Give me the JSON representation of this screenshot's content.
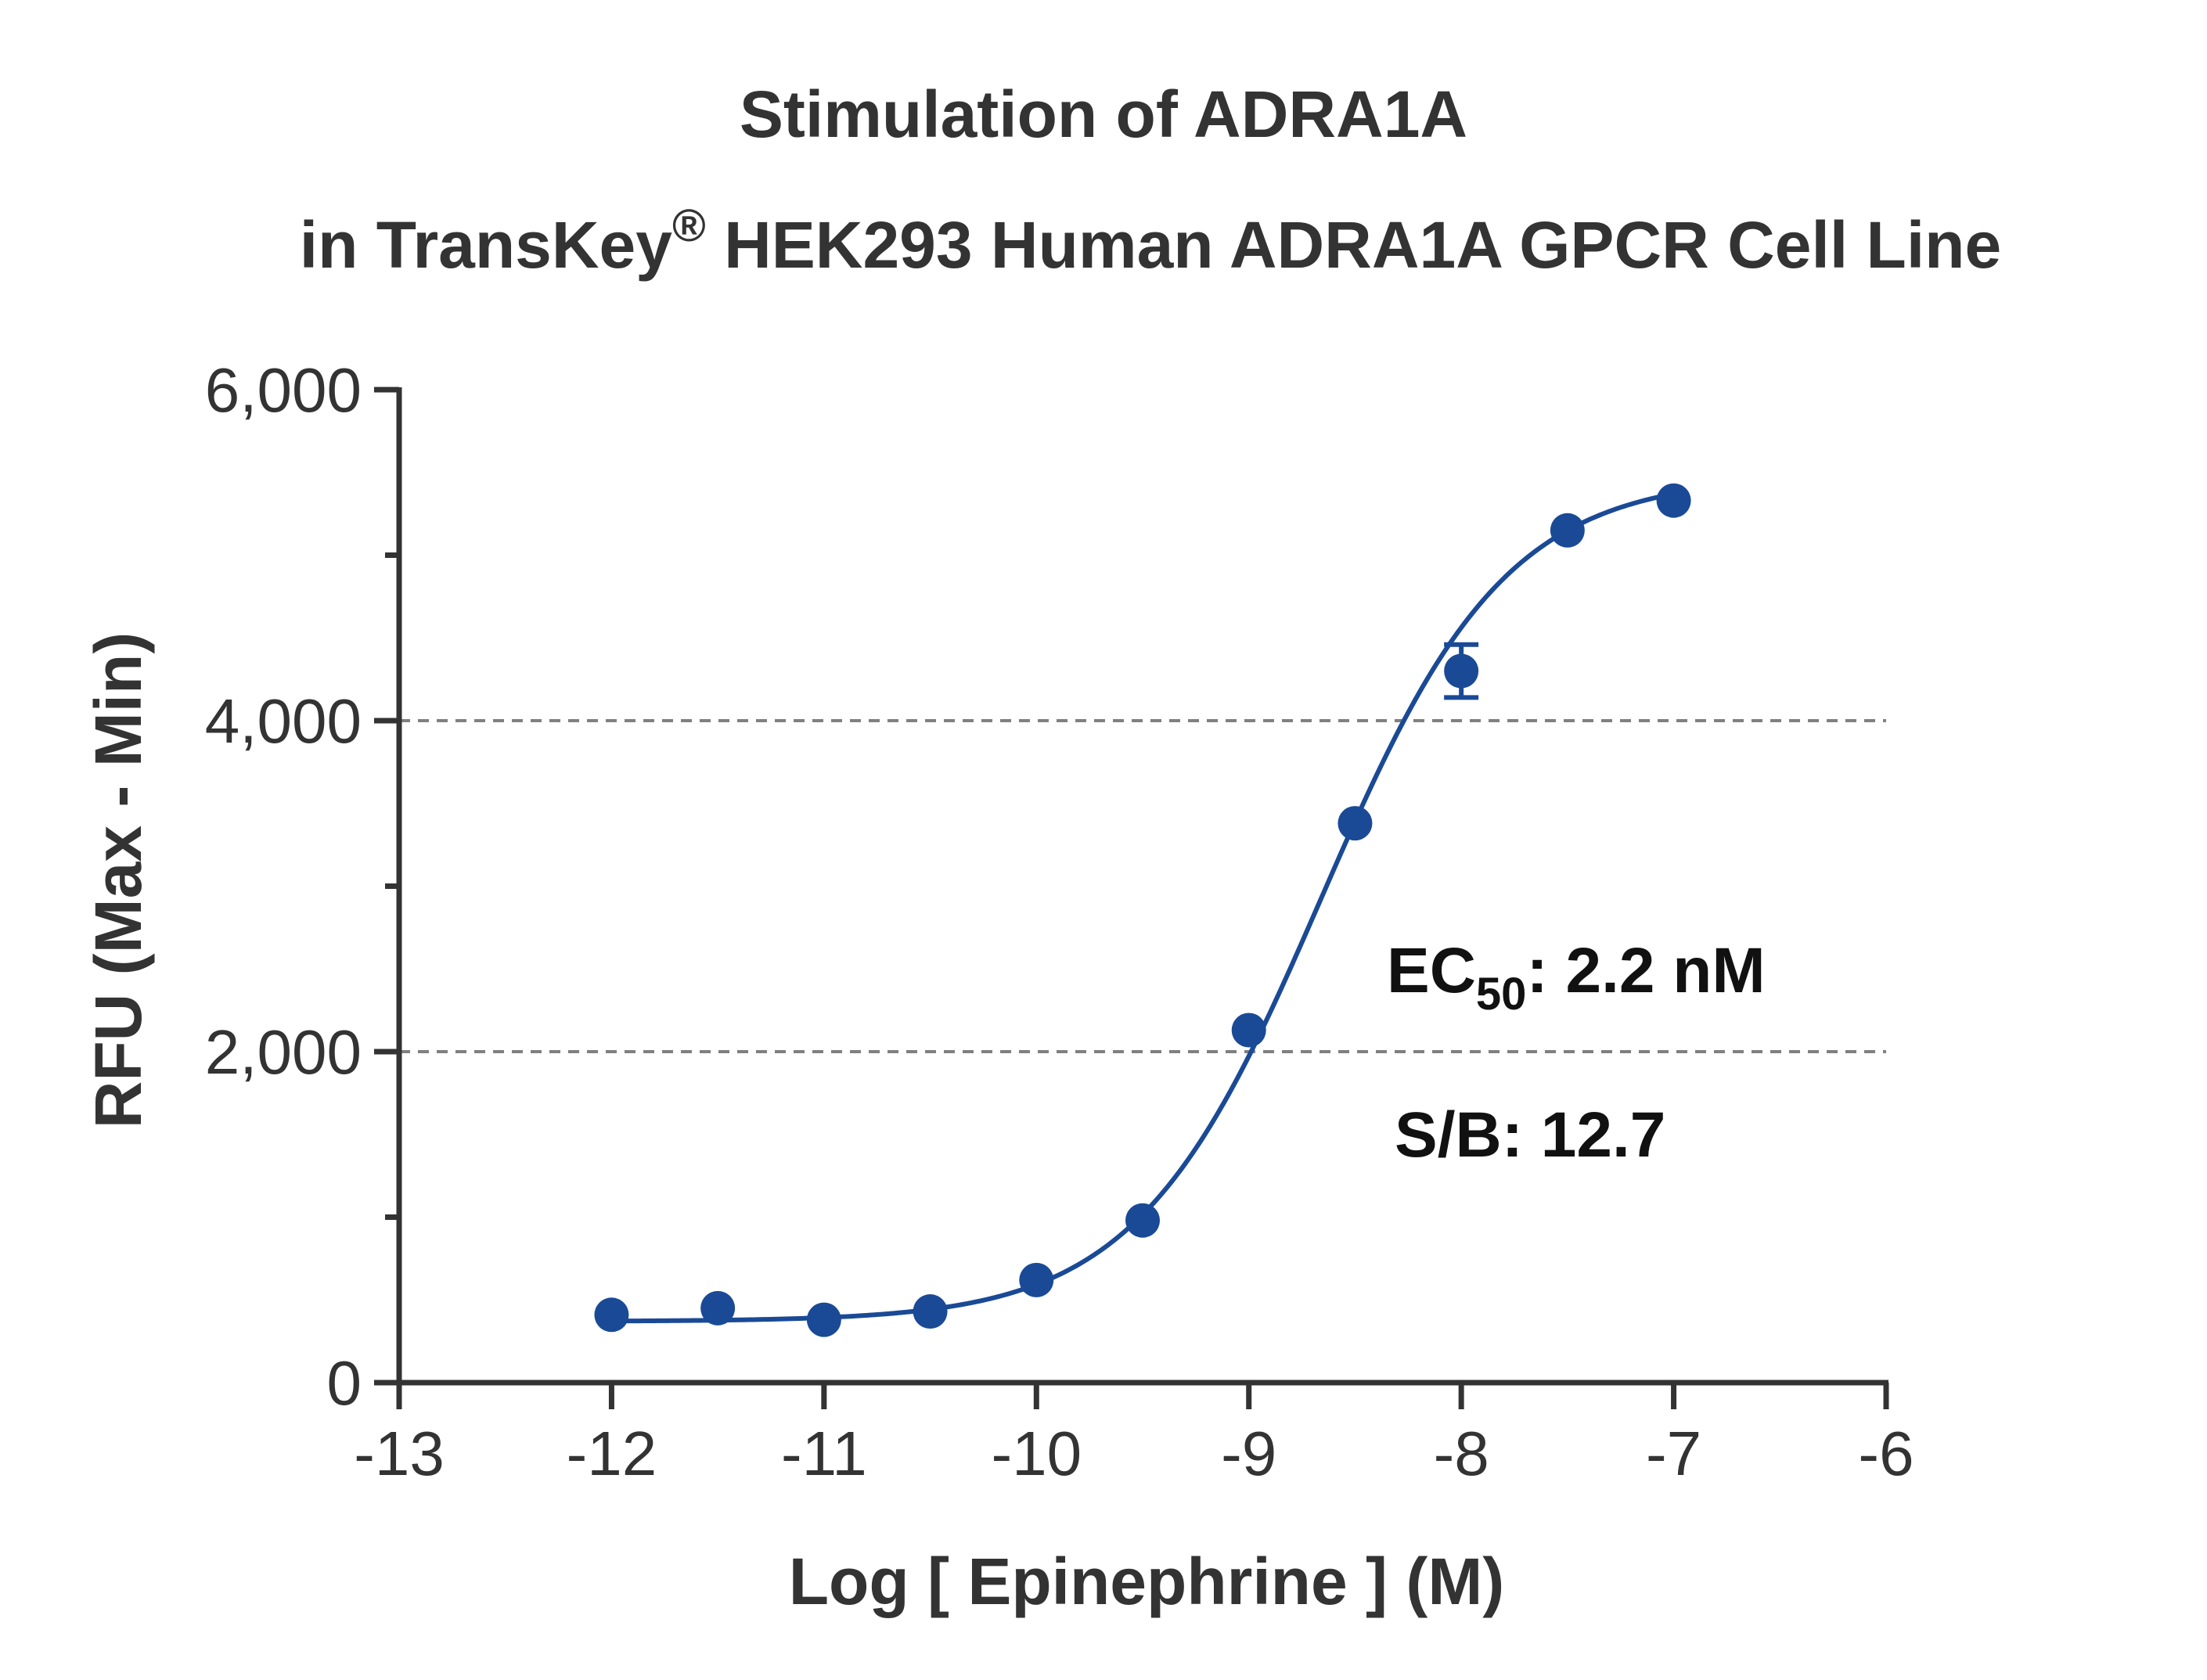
{
  "chart_data": {
    "type": "scatter",
    "title_line1": "Stimulation of  ADRA1A",
    "title_line2_pre": "in TransKey",
    "title_line2_sup": "®",
    "title_line2_post": " HEK293 Human ADRA1A GPCR Cell Line",
    "xlabel": "Log [ Epinephrine ]  (M)",
    "ylabel": "RFU (Max - Min)",
    "xlim": [
      -13,
      -6
    ],
    "ylim": [
      0,
      6000
    ],
    "x_ticks": [
      -13,
      -12,
      -11,
      -10,
      -9,
      -8,
      -7,
      -6
    ],
    "x_tick_labels": [
      "-13",
      "-12",
      "-11",
      "-10",
      "-9",
      "-8",
      "-7",
      "-6"
    ],
    "y_major_ticks": [
      0,
      2000,
      4000,
      6000
    ],
    "y_tick_labels": [
      "0",
      "2,000",
      "4,000",
      "6,000"
    ],
    "y_minor_ticks": [
      1000,
      3000,
      5000
    ],
    "gridlines_y": [
      2000,
      4000
    ],
    "grid_style": "dashed",
    "series": [
      {
        "color": "#1a4a96",
        "x": [
          -12,
          -11.5,
          -11,
          -10.5,
          -10,
          -9.5,
          -9,
          -8.5,
          -8,
          -7.5,
          -7
        ],
        "y": [
          410,
          450,
          380,
          430,
          620,
          980,
          2130,
          3380,
          4300,
          5150,
          5330
        ],
        "error": [
          0,
          0,
          0,
          0,
          0,
          0,
          0,
          0,
          160,
          0,
          0
        ]
      }
    ],
    "fit": {
      "model": "four-parameter logistic",
      "bottom": 370,
      "top": 5480,
      "log_ec50": -8.66,
      "hill": 1.0
    },
    "annotations": {
      "ec50_main": "EC",
      "ec50_sub": "50",
      "ec50_value": ": 2.2 nM",
      "sb": "S/B: 12.7"
    }
  }
}
